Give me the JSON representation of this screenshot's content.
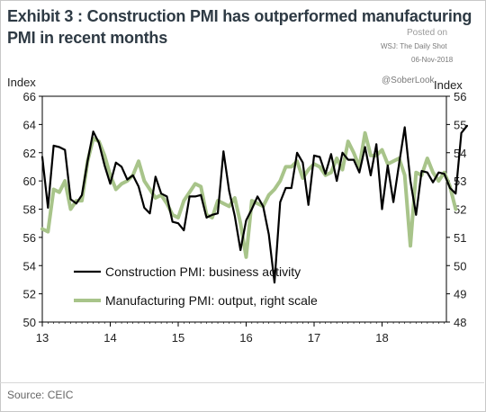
{
  "header": {
    "title": "Exhibit 3 : Construction PMI has outperformed manufacturing PMI in recent months",
    "posted_on": "Posted on",
    "publisher": "WSJ: The Daily Shot",
    "date": "06-Nov-2018",
    "handle": "@SoberLook"
  },
  "footer": {
    "source": "Source: CEIC"
  },
  "chart_data": {
    "type": "line",
    "left_axis_label": "Index",
    "right_axis_label": "Index",
    "ylim_left": [
      50,
      66
    ],
    "ylim_right": [
      48,
      56
    ],
    "left_ticks": [
      50,
      52,
      54,
      56,
      58,
      60,
      62,
      64,
      66
    ],
    "right_ticks": [
      48,
      49,
      50,
      51,
      52,
      53,
      54,
      55,
      56
    ],
    "x_ticks": [
      "13",
      "14",
      "15",
      "16",
      "17",
      "18"
    ],
    "x_start": "2013-01",
    "grid": false,
    "legend_position": "bottom-center",
    "series": [
      {
        "name": "Construction PMI: business activity",
        "axis": "left",
        "color": "#000000",
        "values": [
          61.7,
          58.1,
          62.5,
          62.4,
          62.2,
          58.7,
          58.4,
          59.0,
          61.4,
          63.5,
          62.7,
          61.1,
          59.8,
          61.3,
          61.0,
          60.1,
          60.4,
          59.6,
          58.1,
          57.7,
          60.3,
          59.1,
          58.9,
          57.1,
          57.0,
          56.5,
          58.9,
          58.9,
          59.0,
          57.4,
          57.6,
          57.7,
          62.1,
          59.3,
          57.5,
          55.1,
          57.2,
          58.0,
          58.9,
          58.2,
          56.2,
          52.8,
          58.5,
          59.5,
          59.5,
          62.0,
          61.3,
          58.3,
          61.8,
          61.7,
          60.5,
          61.9,
          60.0,
          62.0,
          61.5,
          61.5,
          60.6,
          62.4,
          60.4,
          62.6,
          58.0,
          61.1,
          58.5,
          61.2,
          63.8,
          60.0,
          57.6,
          60.7,
          60.6,
          59.9,
          60.6,
          60.5,
          59.5,
          59.1,
          63.4,
          63.9
        ]
      },
      {
        "name": "Manufacturing PMI: output, right scale",
        "axis": "right",
        "color": "#a8c48a",
        "values": [
          51.3,
          51.2,
          52.7,
          52.6,
          53.0,
          52.0,
          52.3,
          52.3,
          53.7,
          54.5,
          54.4,
          53.9,
          53.2,
          52.7,
          52.9,
          53.0,
          53.2,
          53.7,
          53.0,
          52.7,
          52.4,
          52.5,
          52.2,
          51.8,
          51.7,
          52.3,
          52.6,
          52.9,
          52.8,
          51.8,
          51.7,
          52.3,
          52.2,
          52.1,
          52.4,
          51.5,
          50.3,
          52.3,
          52.2,
          52.1,
          52.5,
          52.7,
          53.0,
          53.5,
          53.5,
          53.7,
          53.1,
          53.4,
          53.6,
          53.5,
          53.2,
          53.3,
          53.8,
          53.4,
          54.4,
          54.0,
          53.5,
          54.7,
          53.9,
          53.9,
          54.1,
          53.6,
          53.7,
          53.8,
          53.2,
          50.7,
          53.3,
          53.2,
          53.8,
          53.3,
          53.0,
          53.3,
          52.8,
          52.0
        ]
      }
    ]
  }
}
